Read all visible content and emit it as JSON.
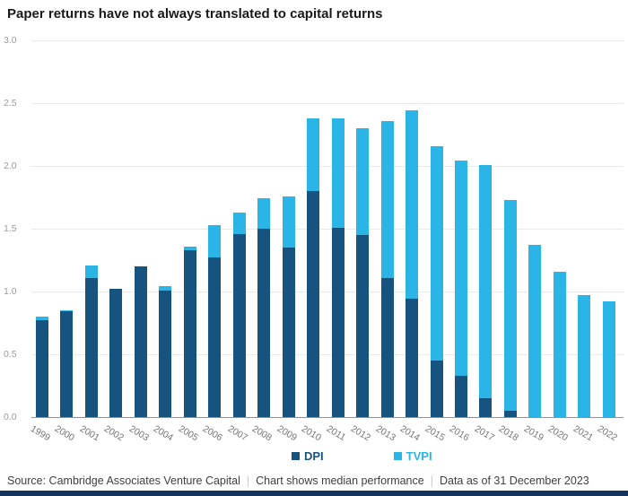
{
  "title": "Paper returns have not always translated to capital returns",
  "colors": {
    "dpi": "#16537e",
    "tvpi": "#2bb5e6",
    "grid": "#e9e9e9",
    "axis_line": "#919191",
    "tick_text": "#9b9b9b",
    "year_text": "#757575",
    "title_text": "#1a1a1a",
    "footer_text": "#3f3f3f",
    "footer_bar": "#14355d"
  },
  "chart_data": {
    "type": "bar",
    "title": "Paper returns have not always translated to capital returns",
    "note": "Bars show total TVPI (light blue) with DPI portion overlaid in dark navy",
    "categories": [
      "1999",
      "2000",
      "2001",
      "2002",
      "2003",
      "2004",
      "2005",
      "2006",
      "2007",
      "2008",
      "2009",
      "2010",
      "2011",
      "2012",
      "2013",
      "2014",
      "2015",
      "2016",
      "2017",
      "2018",
      "2019",
      "2020",
      "2021",
      "2022"
    ],
    "series": [
      {
        "name": "DPI",
        "values": [
          0.77,
          0.84,
          1.11,
          1.02,
          1.2,
          1.01,
          1.33,
          1.27,
          1.46,
          1.5,
          1.35,
          1.8,
          1.51,
          1.45,
          1.11,
          0.94,
          0.45,
          0.33,
          0.15,
          0.05,
          0.0,
          0.0,
          0.0,
          0.0
        ]
      },
      {
        "name": "TVPI",
        "values": [
          0.8,
          0.85,
          1.21,
          1.02,
          1.2,
          1.04,
          1.36,
          1.53,
          1.63,
          1.74,
          1.76,
          2.38,
          2.38,
          2.3,
          2.36,
          2.44,
          2.16,
          2.04,
          2.01,
          1.73,
          1.37,
          1.16,
          0.97,
          0.92
        ]
      }
    ],
    "xlabel": "",
    "ylabel": "",
    "ylim": [
      0,
      3.0
    ],
    "yticks": [
      "0.0",
      "0.5",
      "1.0",
      "1.5",
      "2.0",
      "2.5",
      "3.0"
    ],
    "grid": "horizontal",
    "legend_position": "bottom"
  },
  "legend": {
    "items": [
      {
        "label": "DPI",
        "color": "#16537e"
      },
      {
        "label": "TVPI",
        "color": "#2bb5e6"
      }
    ]
  },
  "footer": {
    "source": "Source: Cambridge Associates Venture Capital",
    "note": "Chart shows median performance",
    "data_as_of": "Data as of 31 December 2023",
    "separator": "|"
  }
}
